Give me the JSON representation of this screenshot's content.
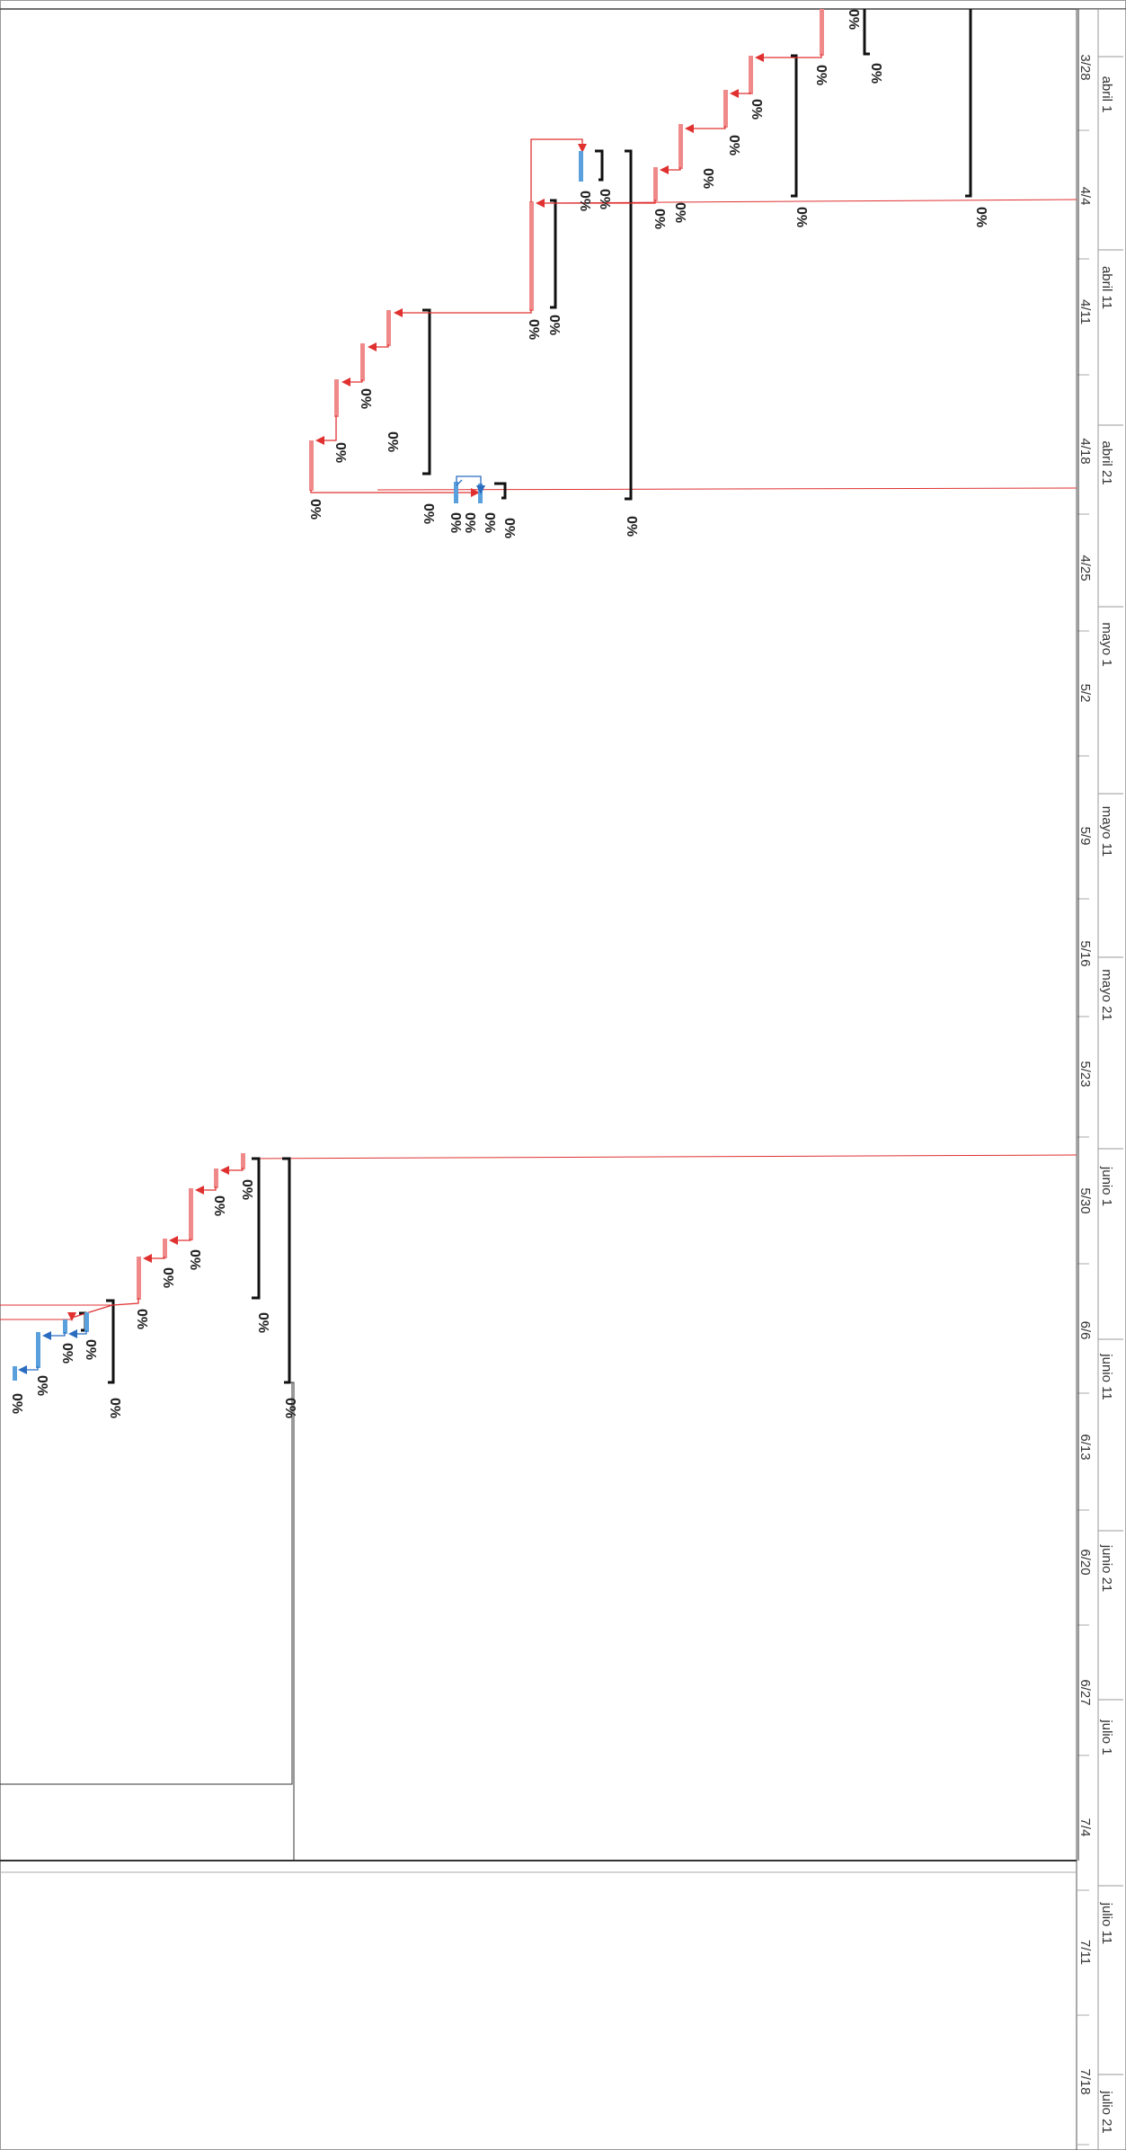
{
  "timescale": {
    "minor_ticks": [
      "3/28",
      "4/4",
      "4/11",
      "4/18",
      "4/25",
      "5/2",
      "5/9",
      "5/16",
      "5/23",
      "5/30",
      "6/6",
      "6/13",
      "6/20",
      "6/27",
      "7/4",
      "7/11",
      "7/18"
    ],
    "major_ticks": [
      "abril 1",
      "abril 11",
      "abril 21",
      "mayo 1",
      "mayo 11",
      "mayo 21",
      "junio 1",
      "junio 11",
      "junio 21",
      "julio 1",
      "julio 11",
      "julio 21"
    ]
  },
  "task_labels": {
    "percent_complete": "0%"
  },
  "colors": {
    "critical_task": "#f08a8a",
    "critical_link": "#e03030",
    "normal_task": "#5aa0dc",
    "normal_link": "#2a6cc0",
    "summary_bracket": "#111111",
    "grid_line": "#444444"
  }
}
